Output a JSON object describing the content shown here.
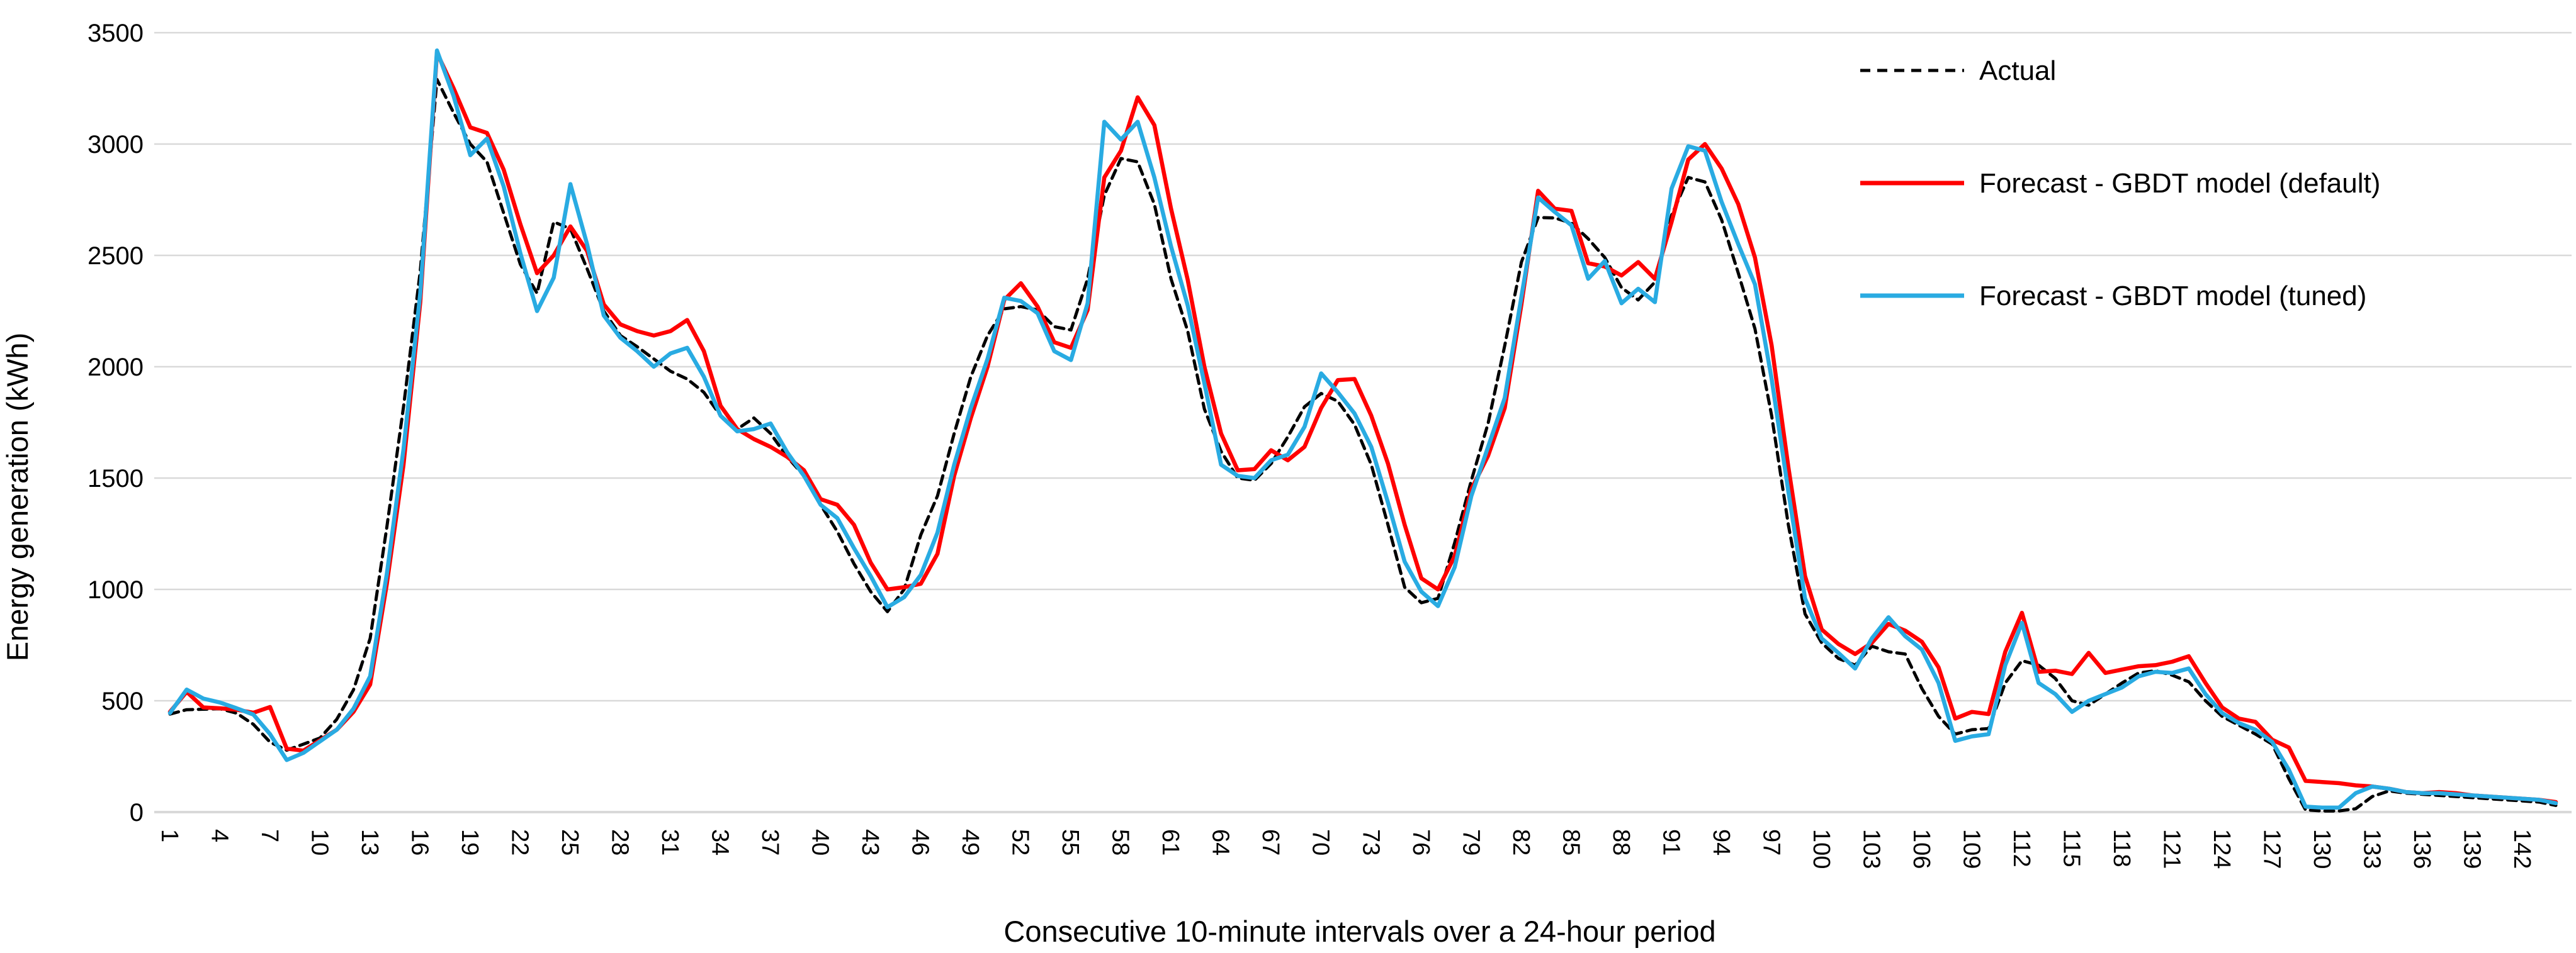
{
  "chart_data": {
    "type": "line",
    "title": "",
    "xlabel": "Consecutive 10-minute intervals over a 24-hour period",
    "ylabel": "Energy generation (kWh)",
    "x_count": 144,
    "x_tick_labels": [
      1,
      4,
      7,
      10,
      13,
      16,
      19,
      22,
      25,
      28,
      31,
      34,
      37,
      40,
      43,
      46,
      49,
      52,
      55,
      58,
      61,
      64,
      67,
      70,
      73,
      76,
      79,
      82,
      85,
      88,
      91,
      94,
      97,
      100,
      103,
      106,
      109,
      112,
      115,
      118,
      121,
      124,
      127,
      130,
      133,
      136,
      139,
      142
    ],
    "ylim": [
      0,
      3500
    ],
    "ytick_step": 500,
    "yticks": [
      0,
      500,
      1000,
      1500,
      2000,
      2500,
      3000,
      3500
    ],
    "grid": "horizontal",
    "gridline_color": "#D9D9D9",
    "legend_position": "top-right",
    "series": [
      {
        "name": "Actual",
        "color": "#000000",
        "style": "dashed",
        "values": [
          440,
          460,
          462,
          464,
          444,
          394,
          314,
          278,
          305,
          333,
          417,
          549,
          780,
          1280,
          1820,
          2430,
          3290,
          3140,
          3000,
          2920,
          2690,
          2460,
          2330,
          2650,
          2620,
          2440,
          2250,
          2140,
          2090,
          2035,
          1980,
          1945,
          1885,
          1780,
          1720,
          1770,
          1700,
          1595,
          1510,
          1380,
          1260,
          1115,
          990,
          900,
          1000,
          1245,
          1420,
          1700,
          1955,
          2140,
          2260,
          2270,
          2255,
          2180,
          2165,
          2395,
          2770,
          2935,
          2920,
          2730,
          2395,
          2160,
          1810,
          1620,
          1500,
          1490,
          1565,
          1685,
          1820,
          1880,
          1845,
          1740,
          1560,
          1290,
          1010,
          940,
          960,
          1210,
          1490,
          1745,
          2095,
          2470,
          2670,
          2668,
          2645,
          2575,
          2490,
          2355,
          2300,
          2380,
          2680,
          2850,
          2830,
          2660,
          2420,
          2170,
          1780,
          1290,
          890,
          760,
          690,
          660,
          745,
          720,
          710,
          555,
          430,
          350,
          370,
          375,
          580,
          680,
          660,
          600,
          500,
          480,
          530,
          580,
          625,
          635,
          615,
          585,
          500,
          430,
          390,
          350,
          305,
          150,
          10,
          5,
          5,
          15,
          70,
          95,
          85,
          80,
          75,
          70,
          65,
          60,
          55,
          50,
          45,
          30
        ]
      },
      {
        "name": "Forecast - GBDT model (default)",
        "color": "#FF0000",
        "style": "solid",
        "values": [
          450,
          540,
          470,
          466,
          460,
          446,
          472,
          285,
          276,
          323,
          370,
          450,
          573,
          1025,
          1560,
          2290,
          3410,
          3250,
          3075,
          3050,
          2885,
          2640,
          2420,
          2500,
          2630,
          2520,
          2280,
          2190,
          2160,
          2140,
          2160,
          2210,
          2070,
          1825,
          1720,
          1675,
          1640,
          1595,
          1535,
          1405,
          1380,
          1290,
          1120,
          1000,
          1010,
          1025,
          1160,
          1510,
          1770,
          2000,
          2300,
          2375,
          2270,
          2110,
          2085,
          2255,
          2850,
          2970,
          3210,
          3085,
          2710,
          2390,
          2000,
          1700,
          1535,
          1540,
          1625,
          1580,
          1640,
          1815,
          1940,
          1945,
          1780,
          1565,
          1290,
          1050,
          1000,
          1150,
          1450,
          1600,
          1815,
          2280,
          2790,
          2710,
          2700,
          2465,
          2450,
          2410,
          2470,
          2395,
          2650,
          2930,
          3000,
          2890,
          2730,
          2490,
          2095,
          1550,
          1060,
          820,
          755,
          710,
          760,
          845,
          815,
          765,
          650,
          420,
          450,
          440,
          720,
          895,
          630,
          635,
          620,
          715,
          625,
          640,
          655,
          660,
          675,
          700,
          580,
          470,
          420,
          405,
          325,
          290,
          140,
          135,
          130,
          120,
          115,
          105,
          90,
          85,
          90,
          85,
          75,
          70,
          65,
          60,
          55,
          45
        ]
      },
      {
        "name": "Forecast - GBDT model (tuned)",
        "color": "#29ABE2",
        "style": "solid",
        "values": [
          445,
          550,
          510,
          492,
          466,
          438,
          350,
          234,
          266,
          318,
          370,
          464,
          610,
          1070,
          1630,
          2330,
          3420,
          3215,
          2950,
          3025,
          2810,
          2510,
          2250,
          2400,
          2820,
          2550,
          2230,
          2130,
          2070,
          2000,
          2060,
          2085,
          1955,
          1780,
          1710,
          1720,
          1745,
          1615,
          1510,
          1380,
          1320,
          1185,
          1060,
          920,
          965,
          1065,
          1255,
          1560,
          1815,
          2035,
          2310,
          2295,
          2240,
          2070,
          2030,
          2285,
          3100,
          3020,
          3100,
          2850,
          2540,
          2275,
          1925,
          1560,
          1510,
          1500,
          1580,
          1605,
          1730,
          1970,
          1885,
          1790,
          1640,
          1390,
          1125,
          990,
          925,
          1100,
          1420,
          1640,
          1860,
          2315,
          2760,
          2695,
          2635,
          2395,
          2475,
          2285,
          2350,
          2290,
          2800,
          2990,
          2970,
          2740,
          2550,
          2370,
          1945,
          1440,
          960,
          780,
          715,
          645,
          780,
          875,
          790,
          730,
          580,
          320,
          340,
          350,
          660,
          850,
          580,
          530,
          450,
          500,
          530,
          560,
          610,
          630,
          625,
          645,
          530,
          445,
          400,
          370,
          315,
          190,
          25,
          20,
          20,
          85,
          115,
          105,
          90,
          85,
          85,
          80,
          75,
          70,
          65,
          60,
          55,
          40
        ]
      }
    ]
  }
}
